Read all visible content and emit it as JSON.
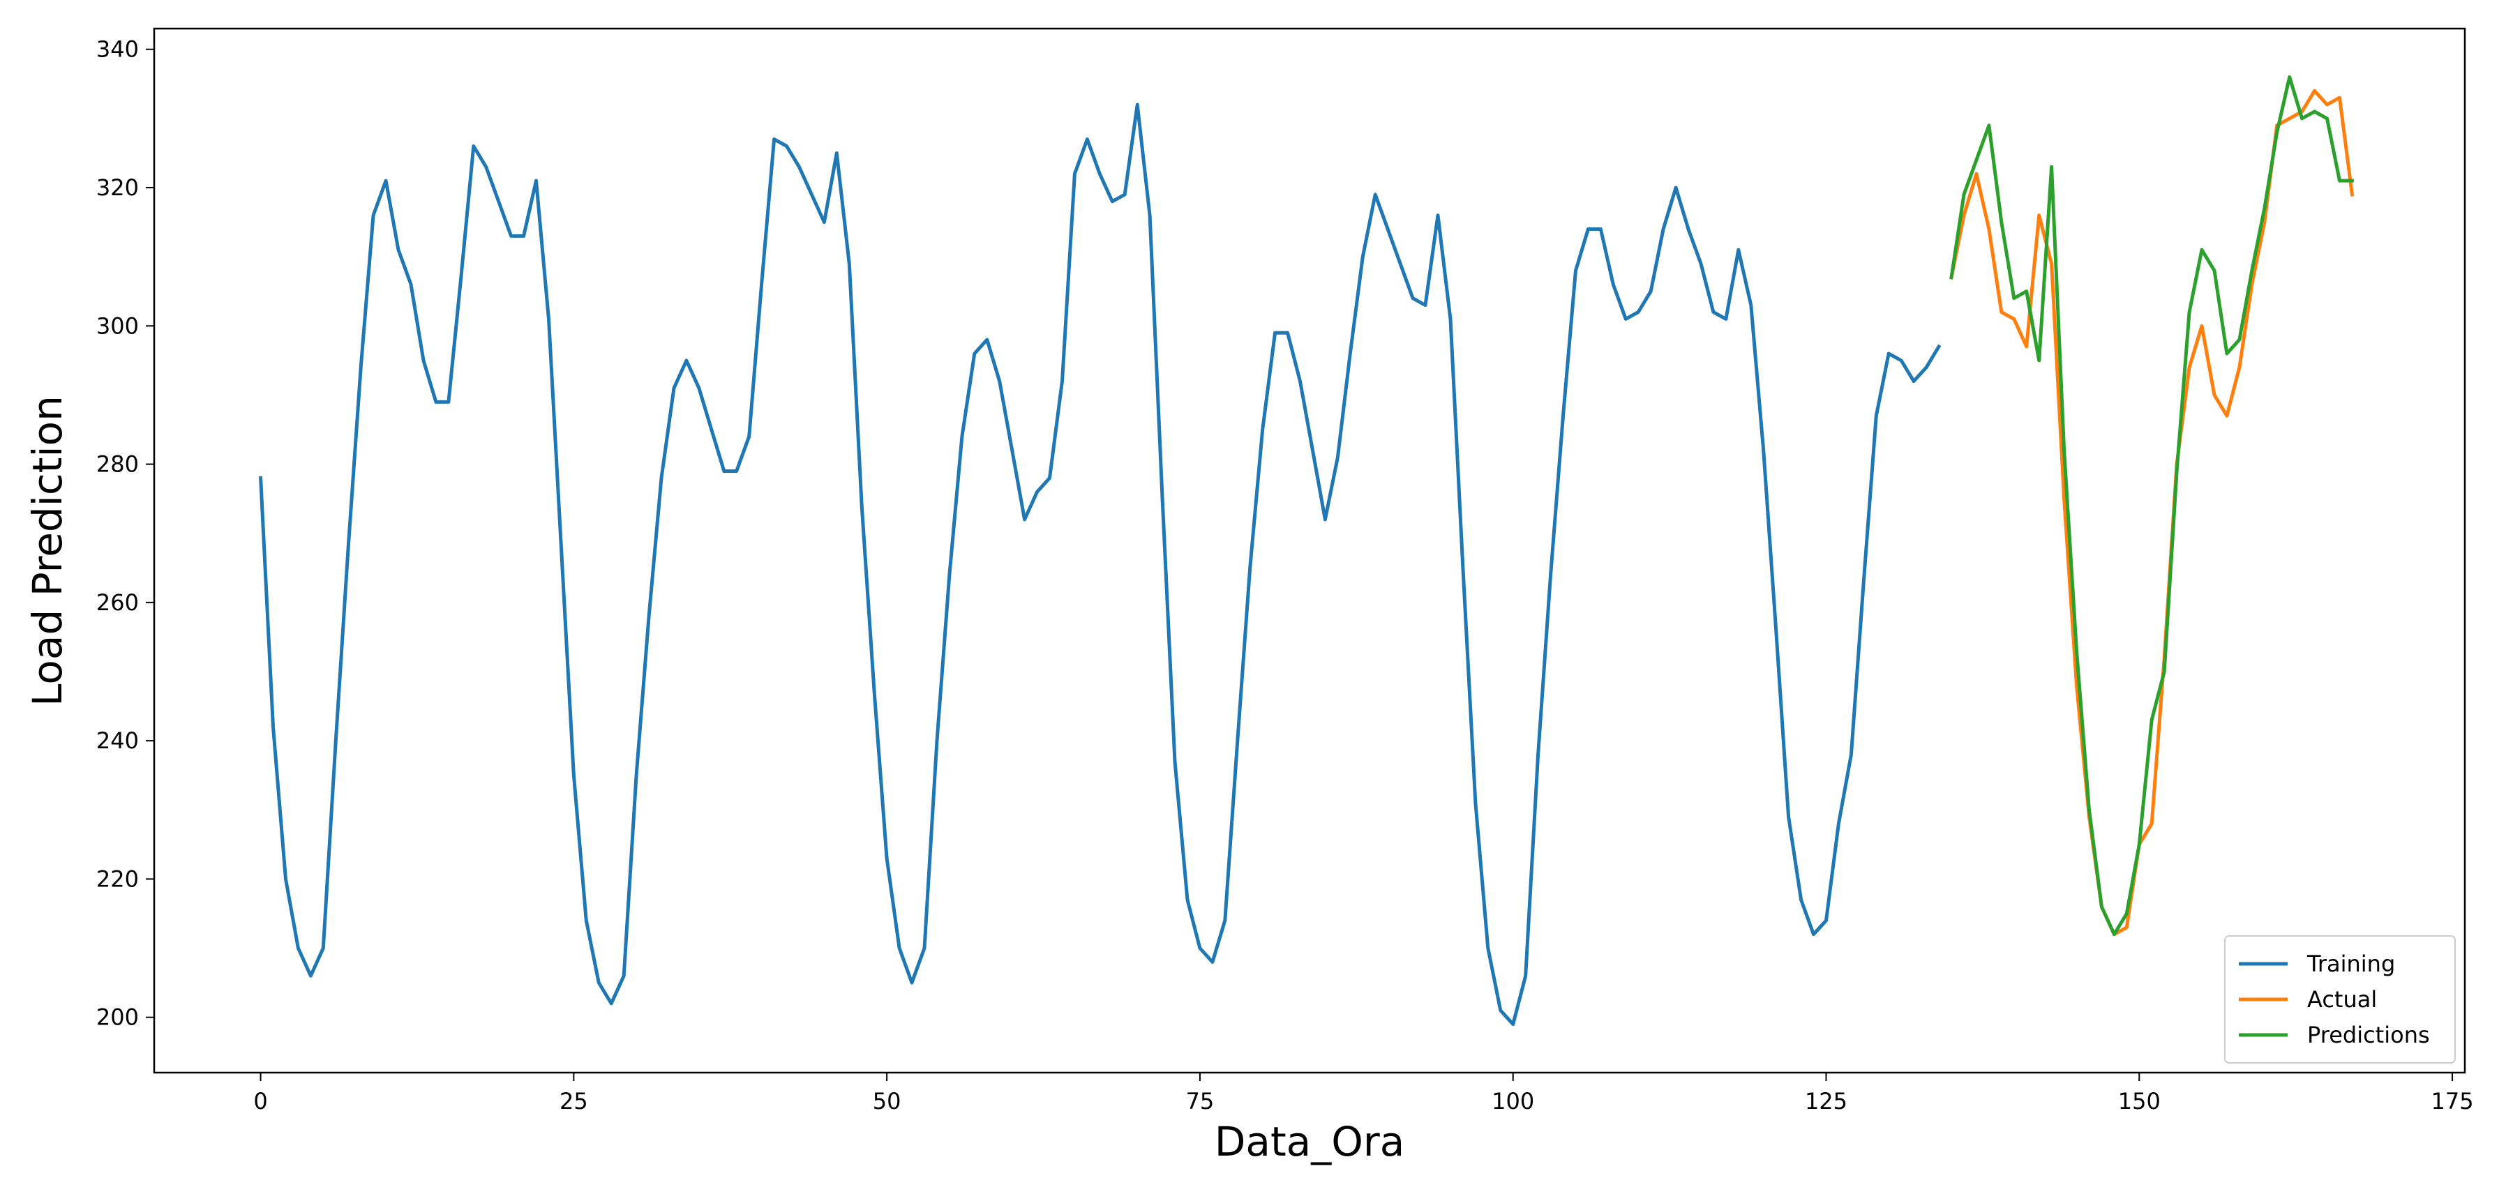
{
  "chart_data": {
    "type": "line",
    "title": "",
    "xlabel": "Data_Ora",
    "ylabel": "Load Prediction",
    "xlim": [
      -8.5,
      176
    ],
    "ylim": [
      192,
      343
    ],
    "xticks": [
      0,
      25,
      50,
      75,
      100,
      125,
      150,
      175
    ],
    "yticks": [
      200,
      220,
      240,
      260,
      280,
      300,
      320,
      340
    ],
    "grid": false,
    "legend_position": "lower right",
    "series": [
      {
        "name": "Training",
        "color": "#1f77b4",
        "x_start": 0,
        "values": [
          278,
          242,
          220,
          210,
          206,
          210,
          240,
          268,
          294,
          316,
          321,
          311,
          306,
          295,
          289,
          289,
          307,
          326,
          323,
          318,
          313,
          313,
          321,
          301,
          268,
          235,
          214,
          205,
          202,
          206,
          235,
          258,
          278,
          291,
          295,
          291,
          285,
          279,
          279,
          284,
          306,
          327,
          326,
          323,
          319,
          315,
          325,
          309,
          274,
          247,
          223,
          210,
          205,
          210,
          240,
          264,
          284,
          296,
          298,
          292,
          282,
          272,
          276,
          278,
          292,
          322,
          327,
          322,
          318,
          319,
          332,
          316,
          275,
          237,
          217,
          210,
          208,
          214,
          240,
          265,
          285,
          299,
          299,
          292,
          282,
          272,
          281,
          296,
          310,
          319,
          314,
          309,
          304,
          303,
          316,
          301,
          265,
          231,
          210,
          201,
          199,
          206,
          238,
          264,
          287,
          308,
          314,
          314,
          306,
          301,
          302,
          305,
          314,
          320,
          314,
          309,
          302,
          301,
          311,
          303,
          282,
          256,
          229,
          217,
          212,
          214,
          228,
          238,
          263,
          287,
          296,
          295,
          292,
          294,
          297
        ]
      },
      {
        "name": "Actual",
        "color": "#ff7f0e",
        "x_start": 135,
        "values": [
          307,
          316,
          322,
          314,
          302,
          301,
          297,
          316,
          309,
          275,
          248,
          229,
          216,
          212,
          213,
          225,
          228,
          252,
          280,
          294,
          300,
          290,
          287,
          294,
          306,
          315,
          329,
          330,
          331,
          334,
          332,
          333,
          319
        ]
      },
      {
        "name": "Predictions",
        "color": "#2ca02c",
        "x_start": 135,
        "values": [
          307,
          319,
          324,
          329,
          315,
          304,
          305,
          295,
          323,
          282,
          253,
          230,
          216,
          212,
          215,
          225,
          243,
          250,
          279,
          302,
          311,
          308,
          296,
          298,
          308,
          317,
          328,
          336,
          330,
          331,
          330,
          321,
          321
        ]
      }
    ]
  }
}
